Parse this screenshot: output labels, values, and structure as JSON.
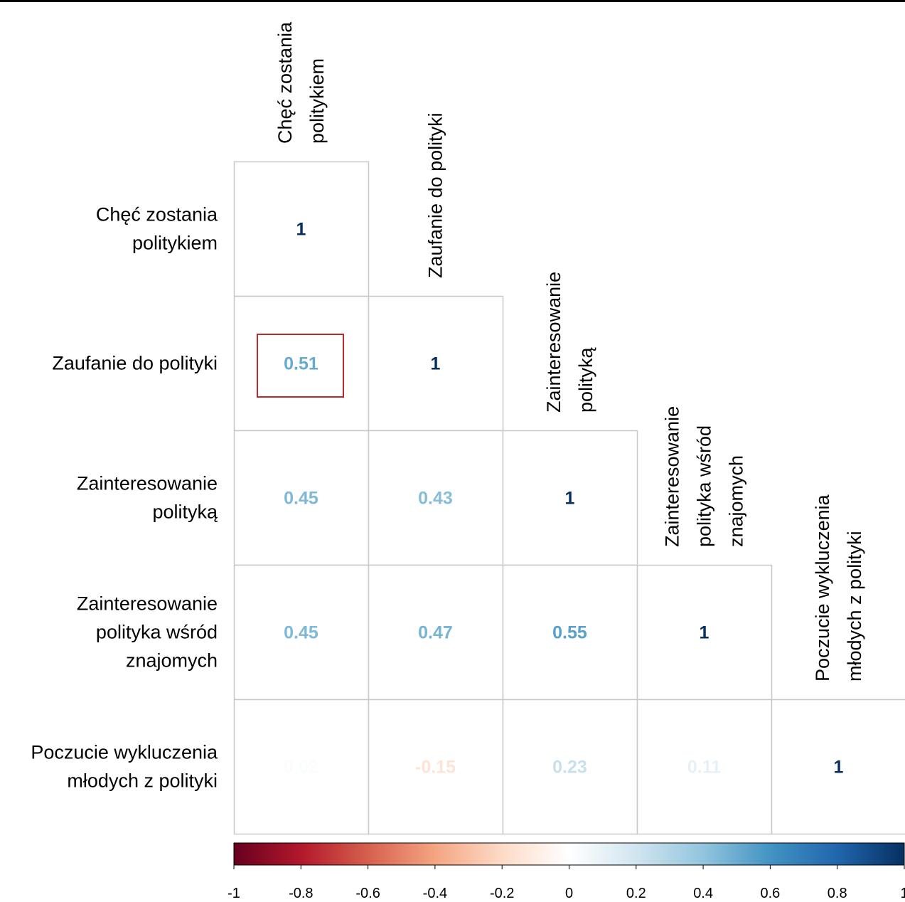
{
  "chart_data": {
    "type": "heatmap",
    "subtype": "lower-triangular correlation matrix",
    "variables": [
      [
        "Chęć zostania",
        "politykiem"
      ],
      [
        "Zaufanie do polityki"
      ],
      [
        "Zainteresowanie",
        "polityką"
      ],
      [
        "Zainteresowanie",
        "polityka wśród",
        "znajomych"
      ],
      [
        "Poczucie wykluczenia",
        "młodych z polityki"
      ]
    ],
    "matrix": [
      [
        1
      ],
      [
        0.51,
        1
      ],
      [
        0.45,
        0.43,
        1
      ],
      [
        0.45,
        0.47,
        0.55,
        1
      ],
      [
        0.02,
        -0.15,
        0.23,
        0.11,
        1
      ]
    ],
    "labels": [
      [
        "1"
      ],
      [
        "0.51",
        "1"
      ],
      [
        "0.45",
        "0.43",
        "1"
      ],
      [
        "0.45",
        "0.47",
        "0.55",
        "1"
      ],
      [
        "0.02",
        "-0.15",
        "0.23",
        "0.11",
        "1"
      ]
    ],
    "highlight": {
      "row": 1,
      "col": 0,
      "color": "#c0272d"
    },
    "colorbar": {
      "range": [
        -1,
        1
      ],
      "ticks": [
        "-1",
        "-0.8",
        "-0.6",
        "-0.4",
        "-0.2",
        "0",
        "0.2",
        "0.4",
        "0.6",
        "0.8",
        "1"
      ],
      "colors": [
        "#67001f",
        "#b2182b",
        "#d6604d",
        "#f4a582",
        "#fddbc7",
        "#ffffff",
        "#d1e5f0",
        "#92c5de",
        "#4393c3",
        "#2166ac",
        "#053061"
      ]
    },
    "grid_color": "#c8c8c8"
  }
}
